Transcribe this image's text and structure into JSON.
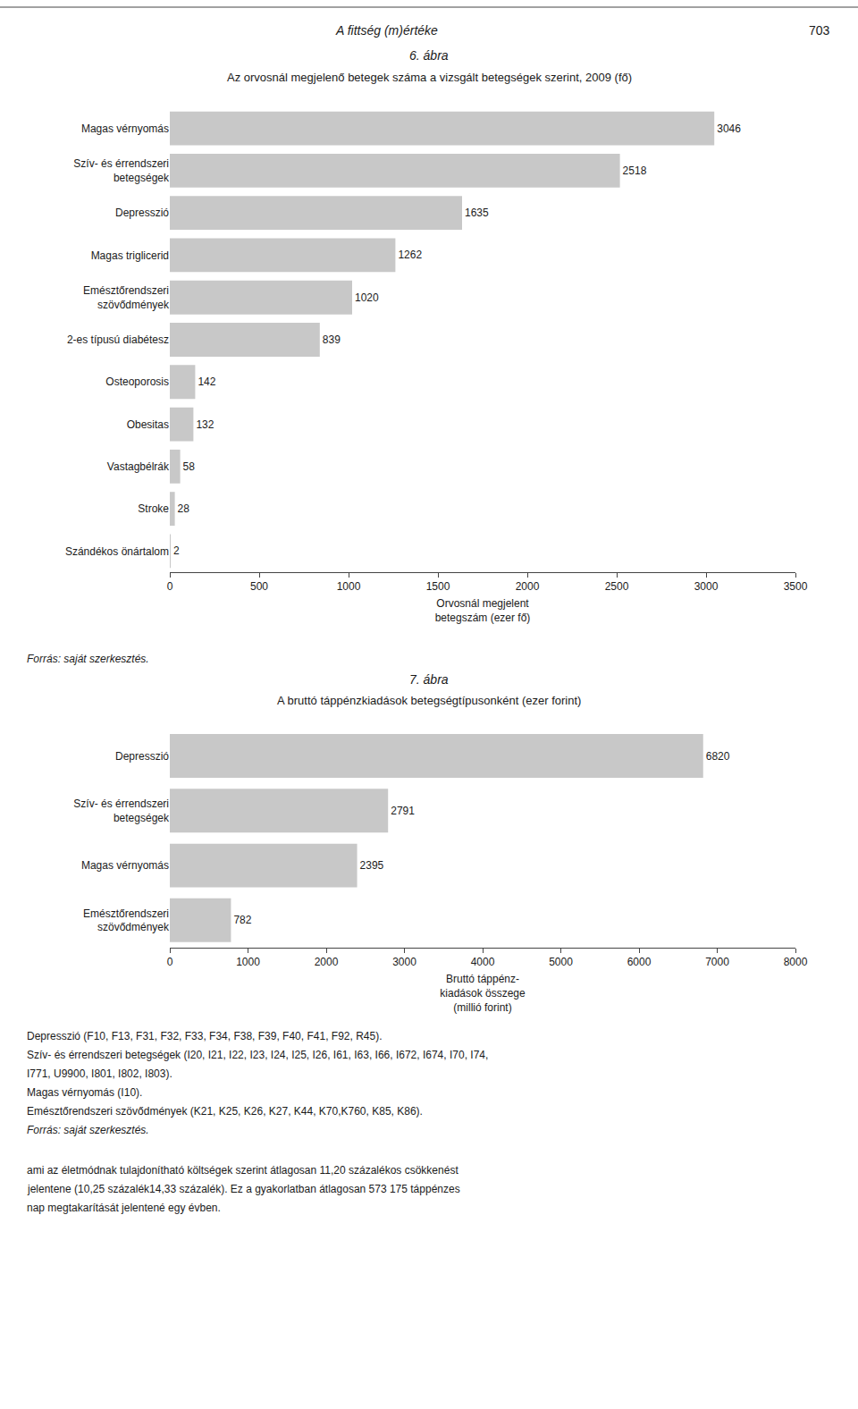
{
  "page_header": "A fittség (m)értéke",
  "page_number": "703",
  "chart_data": [
    {
      "type": "bar",
      "orientation": "horizontal",
      "title": "6. ábra",
      "subtitle": "Az orvosnál megjelenő betegek száma a vizsgált betegségek szerint, 2009 (fő)",
      "categories": [
        "Szándékos önártalom",
        "Stroke",
        "Vastagbélrák",
        "Obesitas",
        "Osteoporosis",
        "2-es típusú diabétesz",
        "Emésztőrendszeri\nszövődmények",
        "Magas triglicerid",
        "Depresszió",
        "Szív- és érrendszeri\nbetegségek",
        "Magas vérnyomás"
      ],
      "values": [
        2,
        28,
        58,
        132,
        142,
        839,
        1020,
        1262,
        1635,
        2518,
        3046
      ],
      "color": "#c8c8c8",
      "xlabel": "Orvosnál megjelent\nbetegszám (ezer fő)",
      "xlim": [
        0,
        3500
      ],
      "xticks": [
        0,
        500,
        1000,
        1500,
        2000,
        2500,
        3000,
        3500
      ],
      "data_labels": true,
      "grid": false,
      "notes": [
        "Forrás: saját szerkesztés."
      ]
    },
    {
      "type": "bar",
      "orientation": "horizontal",
      "title": "7. ábra",
      "subtitle": "A bruttó táppénzkiadások betegségtípusonként (ezer forint)",
      "categories": [
        "Emésztőrendszeri\nszövődmények",
        "Magas vérnyomás",
        "Szív- és érrendszeri\nbetegségek",
        "Depresszió"
      ],
      "values": [
        782,
        2395,
        2791,
        6820
      ],
      "color": "#c8c8c8",
      "xlabel": "Bruttó táppénz-\nkiadások összege\n(millió forint)",
      "xlim": [
        0,
        8000
      ],
      "xticks": [
        0,
        1000,
        2000,
        3000,
        4000,
        5000,
        6000,
        7000,
        8000
      ],
      "data_labels": true,
      "grid": false,
      "notes": [
        "Depresszió (F10, F13, F31, F32, F33, F34, F38, F39, F40, F41, F92, R45).",
        "Szív- és érrendszeri betegségek (I20, I21, I22, I23, I24, I25, I26, I61, I63, I66, I672, I674, I70, I74,",
        "I771, U9900, I801, I802, I803).",
        "Magas vérnyomás (I10).",
        "Emésztőrendszeri szövődmények (K21, K25, K26, K27, K44, K70,K760, K85, K86).",
        "Forrás: saját szerkesztés."
      ]
    }
  ],
  "text": [
    "ami az életmódnak tulajdonítható költségek szerint átlagosan 11,20 százalékos csökkenést",
    "jelentene (10,25 százalék14,33 százalék). Ez a gyakorlatban átlagosan 573 175 táppénzes",
    "nap megtakarítását jelentené egy évben."
  ]
}
